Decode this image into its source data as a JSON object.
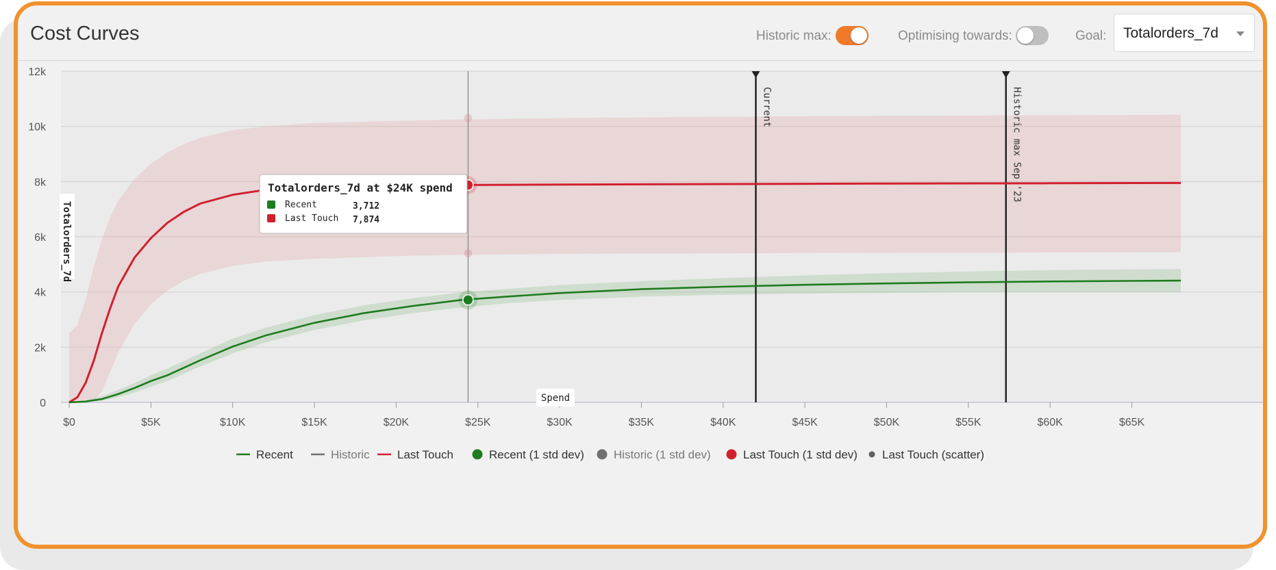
{
  "header": {
    "title": "Cost Curves",
    "historic_max_label": "Historic max:",
    "historic_max_on": true,
    "optimising_label": "Optimising towards:",
    "optimising_on": false,
    "goal_label": "Goal:",
    "goal_value": "Totalorders_7d"
  },
  "colors": {
    "accent": "#f0922e",
    "recent": "#1e7b1e",
    "last_touch": "#d0202e",
    "historic": "#707070"
  },
  "chart_data": {
    "type": "line",
    "xlabel": "Spend",
    "ylabel": "Totalorders_7d",
    "xlim": [
      0,
      69000
    ],
    "ylim": [
      0,
      12000
    ],
    "x_ticks": [
      0,
      5000,
      10000,
      15000,
      20000,
      25000,
      30000,
      35000,
      40000,
      45000,
      50000,
      55000,
      60000,
      65000
    ],
    "x_tick_labels": [
      "$0",
      "$5K",
      "$10K",
      "$15K",
      "$20K",
      "$25K",
      "$30K",
      "$35K",
      "$40K",
      "$45K",
      "$50K",
      "$55K",
      "$60K",
      "$65K"
    ],
    "y_ticks": [
      0,
      2000,
      4000,
      6000,
      8000,
      10000,
      12000
    ],
    "y_tick_labels": [
      "0",
      "2k",
      "4k",
      "6k",
      "8k",
      "10k",
      "12k"
    ],
    "grid": true,
    "legend_position": "bottom",
    "series": [
      {
        "name": "Recent",
        "x": [
          0,
          1000,
          2000,
          3000,
          4000,
          5000,
          6000,
          8000,
          10000,
          12000,
          15000,
          18000,
          21000,
          24000,
          27000,
          30000,
          35000,
          40000,
          45000,
          50000,
          55000,
          60000,
          65000,
          68000
        ],
        "y": [
          0,
          30,
          120,
          300,
          520,
          770,
          980,
          1520,
          2020,
          2420,
          2880,
          3230,
          3490,
          3712,
          3840,
          3960,
          4100,
          4190,
          4260,
          4310,
          4350,
          4380,
          4400,
          4410
        ],
        "band_upper": [
          0,
          60,
          230,
          450,
          700,
          980,
          1220,
          1770,
          2310,
          2700,
          3160,
          3510,
          3770,
          3990,
          4120,
          4250,
          4390,
          4500,
          4600,
          4680,
          4740,
          4790,
          4820,
          4830
        ],
        "band_lower": [
          0,
          10,
          60,
          180,
          360,
          570,
          770,
          1300,
          1770,
          2170,
          2620,
          2970,
          3230,
          3440,
          3600,
          3710,
          3830,
          3900,
          3940,
          3970,
          3990,
          4000,
          4000,
          4000
        ]
      },
      {
        "name": "Last Touch",
        "x": [
          0,
          500,
          1000,
          1500,
          2000,
          2500,
          3000,
          4000,
          5000,
          6000,
          7000,
          8000,
          10000,
          12000,
          15000,
          20000,
          24000,
          30000,
          40000,
          50000,
          60000,
          68000
        ],
        "y": [
          0,
          180,
          700,
          1500,
          2500,
          3400,
          4200,
          5250,
          5950,
          6500,
          6900,
          7200,
          7520,
          7700,
          7810,
          7860,
          7874,
          7890,
          7910,
          7930,
          7940,
          7950
        ],
        "band_upper": [
          2500,
          2800,
          3700,
          4900,
          5900,
          6700,
          7300,
          8100,
          8650,
          9050,
          9350,
          9580,
          9860,
          10000,
          10120,
          10200,
          10250,
          10300,
          10350,
          10380,
          10400,
          10420
        ],
        "band_lower": [
          0,
          0,
          0,
          50,
          400,
          1100,
          1800,
          2850,
          3550,
          4050,
          4400,
          4650,
          4950,
          5100,
          5200,
          5300,
          5350,
          5380,
          5400,
          5420,
          5430,
          5440
        ]
      }
    ],
    "markers": [
      {
        "label": "Current",
        "x": 42000
      },
      {
        "label": "Historic max Sep '23",
        "x": 57300
      }
    ],
    "hover": {
      "x": 24400,
      "title": "Totalorders_7d at $24K spend",
      "rows": [
        {
          "name": "Recent",
          "value": "3,712",
          "y": 3712
        },
        {
          "name": "Last Touch",
          "value": "7,874",
          "y": 7874
        }
      ],
      "last_touch_band": [
        10300,
        5400
      ]
    },
    "legend": [
      {
        "name": "Recent",
        "kind": "line",
        "color": "#1e7b1e"
      },
      {
        "name": "Historic",
        "kind": "line",
        "color": "#707070"
      },
      {
        "name": "Last Touch",
        "kind": "line",
        "color": "#d0202e"
      },
      {
        "name": "Recent (1 std dev)",
        "kind": "dot",
        "color": "#1e7b1e"
      },
      {
        "name": "Historic (1 std dev)",
        "kind": "dot",
        "color": "#707070"
      },
      {
        "name": "Last Touch (1 std dev)",
        "kind": "dot",
        "color": "#d0202e"
      },
      {
        "name": "Last Touch (scatter)",
        "kind": "smalldot",
        "color": "#606060"
      }
    ]
  }
}
